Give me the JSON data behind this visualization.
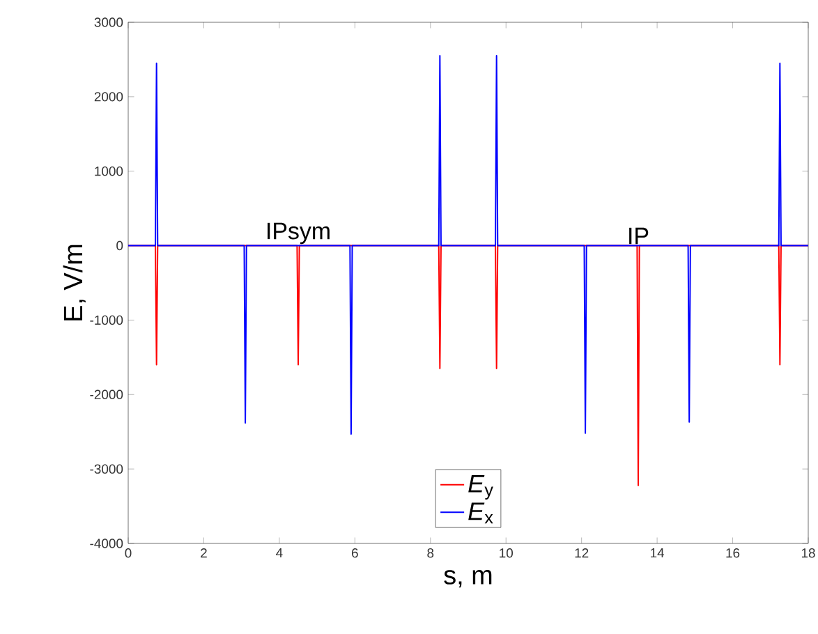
{
  "chart_data": {
    "type": "line",
    "xlabel": "s, m",
    "ylabel": "E, V/m",
    "xlim": [
      0,
      18
    ],
    "ylim": [
      -4000,
      3000
    ],
    "xticks": [
      0,
      2,
      4,
      6,
      8,
      10,
      12,
      14,
      16,
      18
    ],
    "yticks": [
      -4000,
      -3000,
      -2000,
      -1000,
      0,
      1000,
      2000,
      3000
    ],
    "grid": false,
    "legend": "bottom",
    "marker": "none",
    "line_style": "solid",
    "annotations": [
      {
        "text": "IPsym",
        "x": 4.5,
        "y": 0
      },
      {
        "text": "IP",
        "x": 13.5,
        "y": 0
      }
    ],
    "series": [
      {
        "name": "*E*$_{y}$",
        "color": "#ff0000",
        "x": [
          0,
          0.72,
          0.75,
          0.78,
          4.47,
          4.5,
          4.53,
          8.22,
          8.25,
          8.28,
          9.72,
          9.75,
          9.78,
          13.47,
          13.5,
          13.53,
          17.22,
          17.25,
          17.28,
          18
        ],
        "values": [
          0,
          0,
          -1600,
          0,
          0,
          -1600,
          0,
          0,
          -1650,
          0,
          0,
          -1650,
          0,
          0,
          -3220,
          0,
          0,
          -1600,
          0,
          0
        ]
      },
      {
        "name": "*E*$_{x}$",
        "color": "#0000ff",
        "x": [
          0,
          0.72,
          0.75,
          0.78,
          3.07,
          3.1,
          3.13,
          5.87,
          5.9,
          5.93,
          8.22,
          8.25,
          8.28,
          9.72,
          9.75,
          9.78,
          12.07,
          12.1,
          12.13,
          14.82,
          14.85,
          14.88,
          17.22,
          17.25,
          17.28,
          18
        ],
        "values": [
          0,
          0,
          2450,
          0,
          0,
          -2380,
          0,
          0,
          -2530,
          0,
          0,
          2550,
          0,
          0,
          2550,
          0,
          0,
          -2520,
          0,
          0,
          -2370,
          0,
          0,
          2450,
          0,
          0
        ]
      }
    ]
  }
}
